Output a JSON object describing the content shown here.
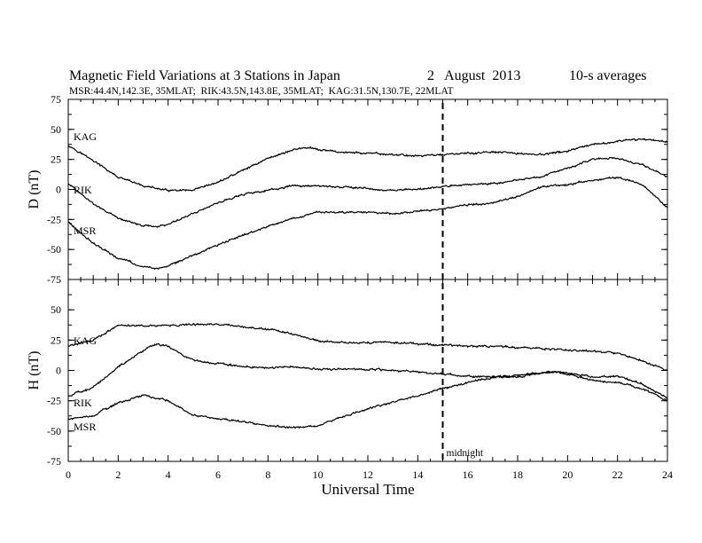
{
  "header": {
    "title": "Magnetic Field Variations at 3 Stations in Japan",
    "date": "2   August  2013",
    "averaging": "10-s averages",
    "stations": "MSR:44.4N,142.3E, 35MLAT;  RIK:43.5N,143.8E, 35MLAT;  KAG:31.5N,130.7E, 22MLAT"
  },
  "chart_data": [
    {
      "type": "line",
      "panel": "D",
      "ylabel": "D (nT)",
      "ylim": [
        -75,
        75
      ],
      "yticks": [
        "75",
        "50",
        "25",
        "0",
        "-25",
        "-50",
        "-75"
      ],
      "xlim": [
        0,
        24
      ],
      "xticks": [
        "0",
        "2",
        "4",
        "6",
        "8",
        "10",
        "12",
        "14",
        "16",
        "18",
        "20",
        "22",
        "24"
      ],
      "marker_line_x": 15,
      "series": [
        {
          "name": "KAG",
          "x": [
            0,
            1,
            2,
            3,
            4,
            5,
            6,
            7,
            8,
            9,
            9.5,
            10,
            11,
            12,
            13,
            14,
            15,
            16,
            17,
            18,
            19,
            20,
            21,
            22,
            23,
            24
          ],
          "y": [
            37,
            24,
            10,
            3,
            -1,
            -1,
            6,
            16,
            26,
            33,
            35,
            33,
            31,
            30,
            29,
            28,
            29,
            30,
            31,
            30,
            29,
            32,
            37,
            40,
            42,
            40
          ]
        },
        {
          "name": "RIK",
          "x": [
            0,
            1,
            2,
            3,
            3.5,
            4,
            5,
            6,
            7,
            8,
            9,
            10,
            11,
            12,
            13,
            14,
            15,
            16,
            17,
            18,
            19,
            20,
            21,
            22,
            23,
            24
          ],
          "y": [
            5,
            -12,
            -24,
            -30,
            -31,
            -29,
            -20,
            -11,
            -4,
            -1,
            3,
            3,
            2,
            1,
            -1,
            0,
            2,
            4,
            5,
            8,
            11,
            18,
            25,
            26,
            20,
            10
          ]
        },
        {
          "name": "MSR",
          "x": [
            0,
            1,
            2,
            3,
            3.5,
            4,
            5,
            6,
            7,
            8,
            9,
            10,
            11,
            12,
            13,
            14,
            15,
            16,
            17,
            18,
            19,
            20,
            21,
            22,
            23,
            24
          ],
          "y": [
            -27,
            -45,
            -57,
            -64,
            -66,
            -64,
            -55,
            -46,
            -38,
            -31,
            -24,
            -19,
            -19,
            -19,
            -20,
            -18,
            -16,
            -13,
            -11,
            -6,
            2,
            4,
            8,
            10,
            4,
            -15
          ]
        }
      ]
    },
    {
      "type": "line",
      "panel": "H",
      "ylabel": "H (nT)",
      "xlabel": "Universal Time",
      "ylim": [
        -75,
        75
      ],
      "yticks": [
        "75",
        "50",
        "25",
        "0",
        "-25",
        "-50",
        "-75"
      ],
      "xlim": [
        0,
        24
      ],
      "xticks": [
        "0",
        "2",
        "4",
        "6",
        "8",
        "10",
        "12",
        "14",
        "16",
        "18",
        "20",
        "22",
        "24"
      ],
      "marker_line_x": 15,
      "marker_label": "midnight",
      "series": [
        {
          "name": "KAG",
          "x": [
            0,
            1,
            2,
            3,
            4,
            5,
            6,
            7,
            8,
            9,
            10,
            11,
            12,
            13,
            14,
            15,
            16,
            17,
            18,
            19,
            20,
            21,
            22,
            23,
            24
          ],
          "y": [
            20,
            25,
            37,
            37,
            37,
            38,
            38,
            36,
            34,
            30,
            24,
            23,
            23,
            23,
            22,
            21,
            20,
            20,
            19,
            18,
            17,
            16,
            14,
            8,
            0
          ]
        },
        {
          "name": "RIK",
          "x": [
            0,
            1,
            2,
            3,
            3.5,
            4,
            5,
            6,
            7,
            8,
            9,
            10,
            11,
            12,
            13,
            14,
            15,
            16,
            17,
            18,
            19,
            19.5,
            20,
            21,
            22,
            23,
            24
          ],
          "y": [
            -21,
            -14,
            3,
            16,
            22,
            20,
            8,
            6,
            3,
            2,
            3,
            1,
            1,
            1,
            0,
            -1,
            -3,
            -5,
            -5,
            -5,
            -2,
            -1,
            -2,
            -5,
            -5,
            -11,
            -23
          ]
        },
        {
          "name": "MSR",
          "x": [
            0,
            1,
            2,
            3,
            4,
            5,
            6,
            7,
            8,
            9,
            10,
            11,
            12,
            13,
            14,
            15,
            16,
            17,
            18,
            19,
            19.5,
            20,
            21,
            22,
            23,
            24
          ],
          "y": [
            -40,
            -37,
            -27,
            -20,
            -25,
            -37,
            -40,
            -42,
            -46,
            -47,
            -46,
            -38,
            -32,
            -26,
            -21,
            -15,
            -10,
            -6,
            -4,
            -2,
            -1,
            -3,
            -8,
            -10,
            -15,
            -25
          ]
        }
      ]
    }
  ],
  "colors": {
    "line": "#000000",
    "background": "#ffffff"
  }
}
